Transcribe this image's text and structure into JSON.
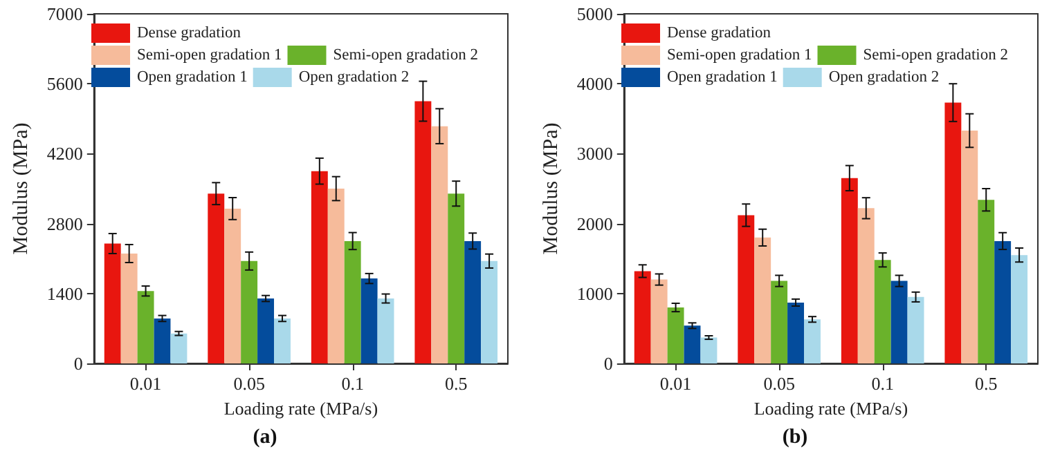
{
  "chart_data": [
    {
      "type": "bar",
      "xlabel": "Loading rate (MPa/s)",
      "ylabel": "Modulus (MPa)",
      "annotations": [
        "(a)"
      ],
      "categories": [
        "0.01",
        "0.05",
        "0.1",
        "0.5"
      ],
      "ylim": [
        0,
        7000
      ],
      "yticks": [
        0,
        1400,
        2800,
        4200,
        5600,
        7000
      ],
      "grid": false,
      "legend": "top",
      "series": [
        {
          "name": "Dense gradation",
          "color": "#e8160f",
          "values": [
            2400,
            3400,
            3850,
            5250
          ],
          "errors": [
            200,
            220,
            260,
            400
          ]
        },
        {
          "name": "Semi-open gradation 1",
          "color": "#f6bb9b",
          "values": [
            2200,
            3100,
            3500,
            4750
          ],
          "errors": [
            180,
            220,
            240,
            350
          ]
        },
        {
          "name": "Semi-open gradation 2",
          "color": "#6ab22b",
          "values": [
            1450,
            2050,
            2450,
            3400
          ],
          "errors": [
            100,
            180,
            170,
            250
          ]
        },
        {
          "name": "Open gradation 1",
          "color": "#044c9c",
          "values": [
            900,
            1300,
            1700,
            2450
          ],
          "errors": [
            60,
            60,
            100,
            160
          ]
        },
        {
          "name": "Open gradation 2",
          "color": "#a9d9ea",
          "values": [
            600,
            900,
            1300,
            2050
          ],
          "errors": [
            40,
            60,
            90,
            140
          ]
        }
      ]
    },
    {
      "type": "bar",
      "xlabel": "Loading rate (MPa/s)",
      "ylabel": "Modulus (MPa)",
      "annotations": [
        "(b)"
      ],
      "categories": [
        "0.01",
        "0.05",
        "0.1",
        "0.5"
      ],
      "ylim": [
        0,
        5000
      ],
      "yticks": [
        0,
        1000,
        2000,
        3000,
        4000,
        5000
      ],
      "grid": false,
      "legend": "top",
      "series": [
        {
          "name": "Dense gradation",
          "color": "#e8160f",
          "values": [
            1320,
            2120,
            2650,
            3730
          ],
          "errors": [
            90,
            160,
            180,
            270
          ]
        },
        {
          "name": "Semi-open gradation 1",
          "color": "#f6bb9b",
          "values": [
            1200,
            1800,
            2220,
            3330
          ],
          "errors": [
            80,
            120,
            150,
            240
          ]
        },
        {
          "name": "Semi-open gradation 2",
          "color": "#6ab22b",
          "values": [
            800,
            1180,
            1480,
            2340
          ],
          "errors": [
            60,
            80,
            100,
            160
          ]
        },
        {
          "name": "Open gradation 1",
          "color": "#044c9c",
          "values": [
            540,
            870,
            1180,
            1750
          ],
          "errors": [
            40,
            50,
            80,
            120
          ]
        },
        {
          "name": "Open gradation 2",
          "color": "#a9d9ea",
          "values": [
            370,
            630,
            950,
            1550
          ],
          "errors": [
            25,
            40,
            70,
            100
          ]
        }
      ]
    }
  ]
}
